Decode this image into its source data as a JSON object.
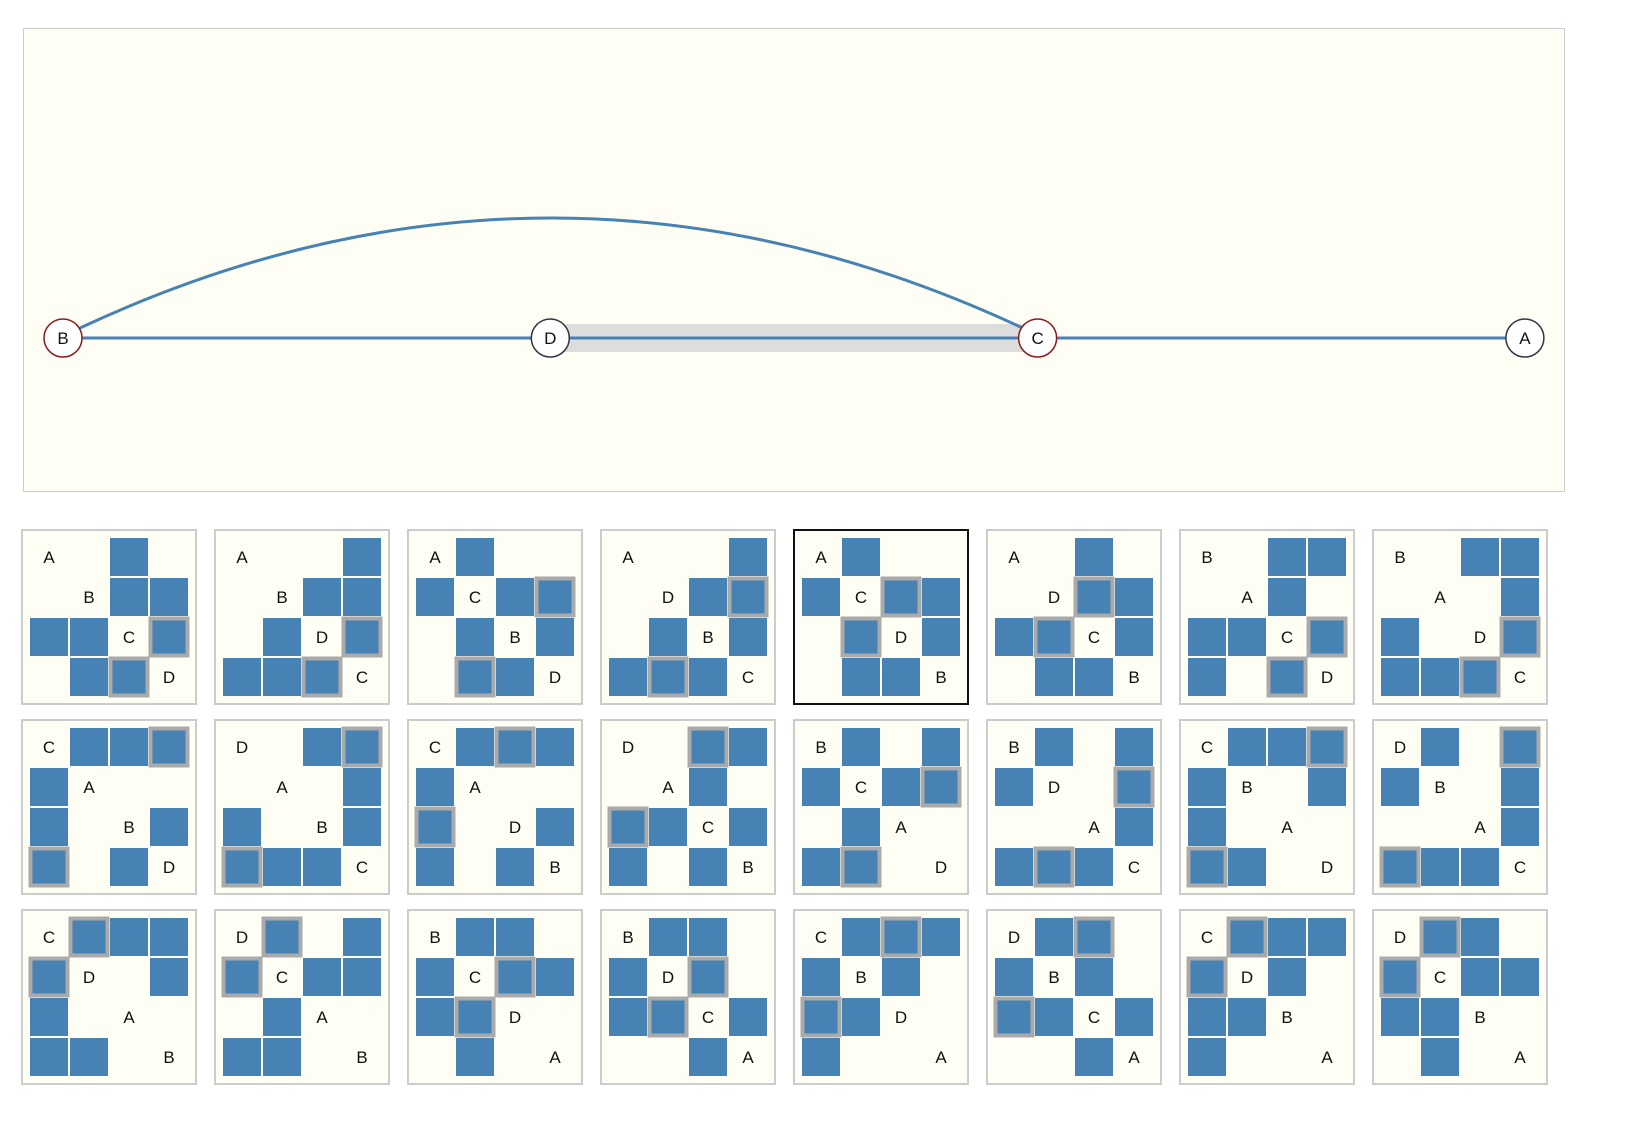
{
  "colors": {
    "panel_background": "#fffef5",
    "panel_border": "#cccccc",
    "edge": "#4682b4",
    "cell_fill": "#4682b4",
    "highlight_band": "#dddddd",
    "highlight_cell_border": "#aaaaaa",
    "node_border_default": "#333344",
    "node_border_emphasis": "#8b1a1a",
    "selected_border": "#111111"
  },
  "arc_diagram": {
    "node_order": [
      "B",
      "D",
      "C",
      "A"
    ],
    "emphasized_nodes": [
      "B",
      "C"
    ],
    "edges": [
      [
        "B",
        "D"
      ],
      [
        "D",
        "C"
      ],
      [
        "C",
        "A"
      ],
      [
        "B",
        "C"
      ]
    ],
    "highlighted_edge": [
      "D",
      "C"
    ]
  },
  "matrices": [
    {
      "order": [
        "A",
        "B",
        "C",
        "D"
      ],
      "selected": false
    },
    {
      "order": [
        "A",
        "B",
        "D",
        "C"
      ],
      "selected": false
    },
    {
      "order": [
        "A",
        "C",
        "B",
        "D"
      ],
      "selected": false
    },
    {
      "order": [
        "A",
        "D",
        "B",
        "C"
      ],
      "selected": false
    },
    {
      "order": [
        "A",
        "C",
        "D",
        "B"
      ],
      "selected": true
    },
    {
      "order": [
        "A",
        "D",
        "C",
        "B"
      ],
      "selected": false
    },
    {
      "order": [
        "B",
        "A",
        "C",
        "D"
      ],
      "selected": false
    },
    {
      "order": [
        "B",
        "A",
        "D",
        "C"
      ],
      "selected": false
    },
    {
      "order": [
        "C",
        "A",
        "B",
        "D"
      ],
      "selected": false
    },
    {
      "order": [
        "D",
        "A",
        "B",
        "C"
      ],
      "selected": false
    },
    {
      "order": [
        "C",
        "A",
        "D",
        "B"
      ],
      "selected": false
    },
    {
      "order": [
        "D",
        "A",
        "C",
        "B"
      ],
      "selected": false
    },
    {
      "order": [
        "B",
        "C",
        "A",
        "D"
      ],
      "selected": false
    },
    {
      "order": [
        "B",
        "D",
        "A",
        "C"
      ],
      "selected": false
    },
    {
      "order": [
        "C",
        "B",
        "A",
        "D"
      ],
      "selected": false
    },
    {
      "order": [
        "D",
        "B",
        "A",
        "C"
      ],
      "selected": false
    },
    {
      "order": [
        "C",
        "D",
        "A",
        "B"
      ],
      "selected": false
    },
    {
      "order": [
        "D",
        "C",
        "A",
        "B"
      ],
      "selected": false
    },
    {
      "order": [
        "B",
        "C",
        "D",
        "A"
      ],
      "selected": false
    },
    {
      "order": [
        "B",
        "D",
        "C",
        "A"
      ],
      "selected": false
    },
    {
      "order": [
        "C",
        "B",
        "D",
        "A"
      ],
      "selected": false
    },
    {
      "order": [
        "D",
        "B",
        "C",
        "A"
      ],
      "selected": false
    },
    {
      "order": [
        "C",
        "D",
        "B",
        "A"
      ],
      "selected": false
    },
    {
      "order": [
        "D",
        "C",
        "B",
        "A"
      ],
      "selected": false
    }
  ]
}
